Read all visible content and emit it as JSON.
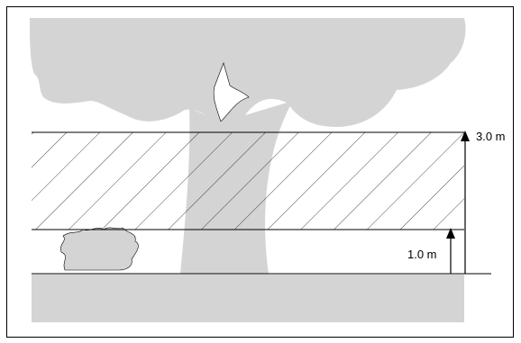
{
  "labels": {
    "upper_height": "3.0 m",
    "lower_height": "1.0 m"
  }
}
